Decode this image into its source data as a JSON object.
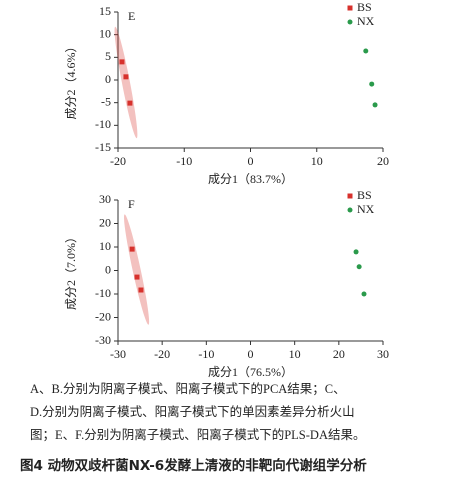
{
  "chart_data": [
    {
      "type": "scatter",
      "label": "E",
      "xlabel": "成分1（83.7%）",
      "ylabel": "成分2（4.6%）",
      "xlim": [
        -20,
        20
      ],
      "xticks": [
        -20,
        -10,
        0,
        10,
        20
      ],
      "ylim": [
        -15,
        15
      ],
      "yticks": [
        -15,
        -10,
        -5,
        0,
        5,
        10,
        15
      ],
      "legend": "upper right",
      "series": [
        {
          "name": "BS",
          "color": "#d7312c",
          "marker": "square",
          "x": [
            -19.4,
            -18.8,
            -18.2
          ],
          "values": [
            4.0,
            0.7,
            -5.1
          ]
        },
        {
          "name": "NX",
          "color": "#2a9a4b",
          "marker": "circle",
          "x": [
            17.4,
            18.3,
            18.8
          ],
          "values": [
            6.4,
            -0.9,
            -5.5
          ]
        }
      ]
    },
    {
      "type": "scatter",
      "label": "F",
      "xlabel": "成分1（76.5%）",
      "ylabel": "成分2（7.0%）",
      "xlim": [
        -30,
        30
      ],
      "xticks": [
        -30,
        -20,
        -10,
        0,
        10,
        20,
        30
      ],
      "ylim": [
        -30,
        30
      ],
      "yticks": [
        -30,
        -20,
        -10,
        0,
        10,
        20,
        30
      ],
      "legend": "upper right",
      "series": [
        {
          "name": "BS",
          "color": "#d7312c",
          "marker": "square",
          "x": [
            -26.8,
            -25.7,
            -24.8
          ],
          "values": [
            9.1,
            -2.8,
            -8.3
          ]
        },
        {
          "name": "NX",
          "color": "#2a9a4b",
          "marker": "circle",
          "x": [
            23.9,
            24.6,
            25.7
          ],
          "values": [
            7.9,
            1.6,
            -10.0
          ]
        }
      ]
    }
  ],
  "caption": {
    "lines": [
      "A、B.分别为阴离子模式、阳离子模式下的PCA结果；C、",
      "D.分别为阴离子模式、阳离子模式下的单因素差异分析火山",
      "图；E、F.分别为阴离子模式、阳离子模式下的PLS-DA结果。"
    ],
    "figure_title": "图4 动物双歧杆菌NX-6发酵上清液的非靶向代谢组学分析"
  }
}
